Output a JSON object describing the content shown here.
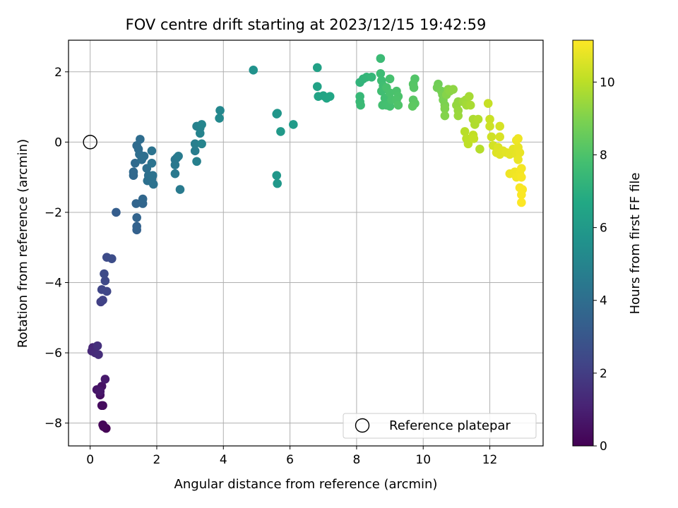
{
  "chart_data": {
    "type": "scatter",
    "title": "FOV centre drift starting at 2023/12/15 19:42:59",
    "xlabel": "Angular distance from reference (arcmin)",
    "ylabel": "Rotation from reference (arcmin)",
    "xlim": [
      -0.65,
      13.6
    ],
    "ylim": [
      -8.65,
      2.9
    ],
    "xticks": [
      0,
      2,
      4,
      6,
      8,
      10,
      12
    ],
    "yticks": [
      -8,
      -6,
      -4,
      -2,
      0,
      2
    ],
    "grid": true,
    "legend": {
      "position": "lower-right",
      "entries": [
        "Reference platepar"
      ]
    },
    "reference_point": {
      "x": 0,
      "y": 0
    },
    "colorbar": {
      "label": "Hours from first FF file",
      "min": 0,
      "max": 11.15,
      "ticks": [
        0,
        2,
        4,
        6,
        8,
        10
      ],
      "colormap": "viridis"
    },
    "points": [
      [
        0.48,
        -8.15,
        0.05
      ],
      [
        0.38,
        -8.05,
        0.1
      ],
      [
        0.4,
        -8.1,
        0.15
      ],
      [
        0.35,
        -7.5,
        0.3
      ],
      [
        0.38,
        -7.5,
        0.35
      ],
      [
        0.3,
        -7.2,
        0.45
      ],
      [
        0.35,
        -6.95,
        0.55
      ],
      [
        0.2,
        -7.05,
        0.6
      ],
      [
        0.3,
        -7.1,
        0.7
      ],
      [
        0.45,
        -6.75,
        0.8
      ],
      [
        0.08,
        -5.85,
        1.2
      ],
      [
        0.05,
        -5.95,
        1.3
      ],
      [
        0.15,
        -6.0,
        1.35
      ],
      [
        0.25,
        -6.05,
        1.45
      ],
      [
        0.22,
        -5.8,
        1.55
      ],
      [
        0.32,
        -4.55,
        2.1
      ],
      [
        0.38,
        -4.5,
        2.2
      ],
      [
        0.35,
        -4.2,
        2.3
      ],
      [
        0.5,
        -4.25,
        2.35
      ],
      [
        0.45,
        -3.95,
        2.45
      ],
      [
        0.42,
        -3.75,
        2.5
      ],
      [
        0.5,
        -3.28,
        2.55
      ],
      [
        0.65,
        -3.32,
        2.6
      ],
      [
        0.78,
        -2.0,
        3.3
      ],
      [
        1.4,
        -2.5,
        3.45
      ],
      [
        1.4,
        -2.4,
        3.5
      ],
      [
        1.4,
        -2.15,
        3.55
      ],
      [
        1.38,
        -1.75,
        3.6
      ],
      [
        1.58,
        -1.75,
        3.65
      ],
      [
        1.58,
        -1.62,
        3.7
      ],
      [
        1.3,
        -0.95,
        3.75
      ],
      [
        1.3,
        -0.85,
        3.8
      ],
      [
        1.35,
        -0.6,
        3.85
      ],
      [
        1.4,
        -0.1,
        3.9
      ],
      [
        1.45,
        -0.2,
        3.92
      ],
      [
        1.5,
        0.08,
        3.95
      ],
      [
        1.48,
        -0.35,
        4.0
      ],
      [
        1.55,
        -0.5,
        4.02
      ],
      [
        1.62,
        -0.4,
        4.05
      ],
      [
        1.7,
        -0.75,
        4.08
      ],
      [
        1.75,
        -0.95,
        4.1
      ],
      [
        1.72,
        -1.1,
        4.12
      ],
      [
        1.85,
        -1.05,
        4.15
      ],
      [
        1.9,
        -1.2,
        4.18
      ],
      [
        1.88,
        -0.95,
        4.2
      ],
      [
        1.85,
        -0.6,
        4.22
      ],
      [
        1.85,
        -0.25,
        4.25
      ],
      [
        2.6,
        -0.45,
        4.35
      ],
      [
        2.55,
        -0.5,
        4.4
      ],
      [
        2.55,
        -0.65,
        4.45
      ],
      [
        2.55,
        -0.9,
        4.5
      ],
      [
        2.7,
        -1.35,
        4.55
      ],
      [
        2.65,
        -0.4,
        4.6
      ],
      [
        3.15,
        -0.25,
        4.7
      ],
      [
        3.15,
        -0.05,
        4.75
      ],
      [
        3.2,
        -0.55,
        4.8
      ],
      [
        3.2,
        0.45,
        4.85
      ],
      [
        3.3,
        0.4,
        4.9
      ],
      [
        3.3,
        0.25,
        4.95
      ],
      [
        3.35,
        -0.05,
        5.0
      ],
      [
        3.35,
        0.5,
        5.05
      ],
      [
        3.9,
        0.9,
        5.15
      ],
      [
        3.88,
        0.68,
        5.2
      ],
      [
        4.9,
        2.05,
        5.6
      ],
      [
        5.6,
        0.8,
        5.75
      ],
      [
        5.62,
        0.82,
        5.8
      ],
      [
        5.6,
        -0.95,
        5.85
      ],
      [
        5.62,
        -1.18,
        5.9
      ],
      [
        5.72,
        0.3,
        5.95
      ],
      [
        6.1,
        0.5,
        6.05
      ],
      [
        6.82,
        2.12,
        6.35
      ],
      [
        6.82,
        1.58,
        6.4
      ],
      [
        6.85,
        1.3,
        6.45
      ],
      [
        7.0,
        1.32,
        6.5
      ],
      [
        7.1,
        1.25,
        6.55
      ],
      [
        7.2,
        1.3,
        6.6
      ],
      [
        8.1,
        1.7,
        7.2
      ],
      [
        8.2,
        1.8,
        7.25
      ],
      [
        8.3,
        1.85,
        7.3
      ],
      [
        8.45,
        1.85,
        7.35
      ],
      [
        8.1,
        1.3,
        7.4
      ],
      [
        8.1,
        1.15,
        7.45
      ],
      [
        8.12,
        1.05,
        7.5
      ],
      [
        8.72,
        2.38,
        7.55
      ],
      [
        8.72,
        1.95,
        7.6
      ],
      [
        8.75,
        1.75,
        7.65
      ],
      [
        8.8,
        1.6,
        7.7
      ],
      [
        8.75,
        1.45,
        7.72
      ],
      [
        8.85,
        1.25,
        7.75
      ],
      [
        8.78,
        1.05,
        7.78
      ],
      [
        8.9,
        1.05,
        7.8
      ],
      [
        9.0,
        1.02,
        7.82
      ],
      [
        9.0,
        1.8,
        7.85
      ],
      [
        8.9,
        1.55,
        7.88
      ],
      [
        9.0,
        1.4,
        7.9
      ],
      [
        9.05,
        1.2,
        7.92
      ],
      [
        9.2,
        1.45,
        7.95
      ],
      [
        9.25,
        1.3,
        7.98
      ],
      [
        9.2,
        1.2,
        8.0
      ],
      [
        9.25,
        1.05,
        8.05
      ],
      [
        9.75,
        1.8,
        8.1
      ],
      [
        9.7,
        1.65,
        8.15
      ],
      [
        9.72,
        1.55,
        8.2
      ],
      [
        9.7,
        1.2,
        8.25
      ],
      [
        9.75,
        1.1,
        8.3
      ],
      [
        9.68,
        1.02,
        8.35
      ],
      [
        10.45,
        1.65,
        8.7
      ],
      [
        10.42,
        1.55,
        8.75
      ],
      [
        10.55,
        1.45,
        8.8
      ],
      [
        10.58,
        1.35,
        8.85
      ],
      [
        10.6,
        1.2,
        8.9
      ],
      [
        10.65,
        1.05,
        8.95
      ],
      [
        10.65,
        0.95,
        9.0
      ],
      [
        10.65,
        0.75,
        9.05
      ],
      [
        10.7,
        1.35,
        9.1
      ],
      [
        10.75,
        1.5,
        9.15
      ],
      [
        10.8,
        1.45,
        9.2
      ],
      [
        10.9,
        1.5,
        9.25
      ],
      [
        11.05,
        1.15,
        9.3
      ],
      [
        11.0,
        1.05,
        9.35
      ],
      [
        11.05,
        0.9,
        9.4
      ],
      [
        11.05,
        0.75,
        9.45
      ],
      [
        11.2,
        1.15,
        9.5
      ],
      [
        11.28,
        1.2,
        9.55
      ],
      [
        11.3,
        1.05,
        9.6
      ],
      [
        11.38,
        1.3,
        9.65
      ],
      [
        11.42,
        1.05,
        9.7
      ],
      [
        11.5,
        0.65,
        9.75
      ],
      [
        11.55,
        0.5,
        9.8
      ],
      [
        11.65,
        0.65,
        9.85
      ],
      [
        11.7,
        -0.2,
        9.9
      ],
      [
        11.25,
        0.3,
        9.95
      ],
      [
        11.3,
        0.1,
        10.0
      ],
      [
        11.35,
        -0.05,
        10.05
      ],
      [
        11.5,
        0.2,
        10.1
      ],
      [
        11.52,
        0.1,
        10.15
      ],
      [
        11.95,
        1.1,
        10.2
      ],
      [
        12.0,
        0.65,
        10.25
      ],
      [
        12.0,
        0.45,
        10.3
      ],
      [
        12.05,
        0.15,
        10.35
      ],
      [
        12.1,
        -0.1,
        10.4
      ],
      [
        12.3,
        0.45,
        10.45
      ],
      [
        12.3,
        0.15,
        10.5
      ],
      [
        12.25,
        -0.15,
        10.55
      ],
      [
        12.2,
        -0.3,
        10.6
      ],
      [
        12.3,
        -0.35,
        10.62
      ],
      [
        12.4,
        -0.25,
        10.65
      ],
      [
        12.5,
        -0.3,
        10.68
      ],
      [
        12.6,
        -0.35,
        10.7
      ],
      [
        12.7,
        -0.2,
        10.72
      ],
      [
        12.8,
        -0.35,
        10.75
      ],
      [
        12.85,
        -0.15,
        10.78
      ],
      [
        12.9,
        -0.3,
        10.8
      ],
      [
        12.85,
        -0.5,
        10.82
      ],
      [
        12.8,
        0.05,
        10.85
      ],
      [
        12.85,
        0.1,
        10.88
      ],
      [
        12.6,
        -0.9,
        10.9
      ],
      [
        12.75,
        -0.85,
        10.92
      ],
      [
        12.8,
        -1.0,
        10.95
      ],
      [
        12.9,
        -0.9,
        10.98
      ],
      [
        12.95,
        -0.75,
        11.0
      ],
      [
        12.95,
        -1.0,
        11.03
      ],
      [
        12.9,
        -1.3,
        11.06
      ],
      [
        12.98,
        -1.35,
        11.08
      ],
      [
        12.95,
        -1.5,
        11.1
      ],
      [
        12.95,
        -1.72,
        11.13
      ]
    ]
  }
}
